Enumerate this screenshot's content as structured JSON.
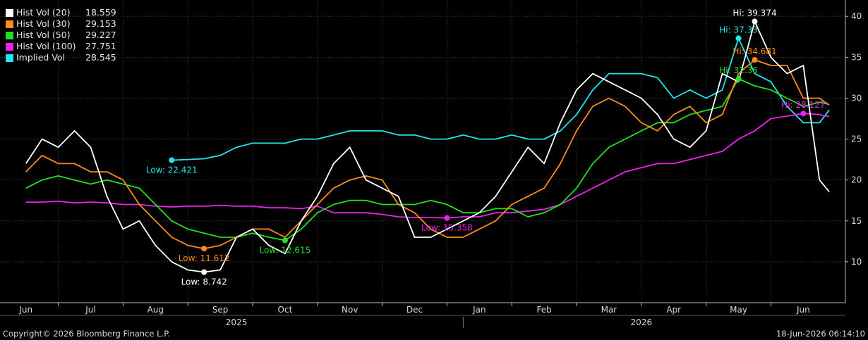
{
  "chart_data": {
    "type": "line",
    "ylim": [
      5,
      42
    ],
    "yticks": [
      10,
      15,
      20,
      25,
      30,
      35,
      40
    ],
    "months": [
      {
        "label": "Jun",
        "x": 0
      },
      {
        "label": "Jul",
        "x": 4
      },
      {
        "label": "Aug",
        "x": 8
      },
      {
        "label": "Sep",
        "x": 12
      },
      {
        "label": "Oct",
        "x": 16
      },
      {
        "label": "Nov",
        "x": 20
      },
      {
        "label": "Dec",
        "x": 24
      },
      {
        "label": "Jan",
        "x": 28
      },
      {
        "label": "Feb",
        "x": 32
      },
      {
        "label": "Mar",
        "x": 36
      },
      {
        "label": "Apr",
        "x": 40
      },
      {
        "label": "May",
        "x": 44
      },
      {
        "label": "Jun",
        "x": 48
      }
    ],
    "years": [
      {
        "label": "2025",
        "x": 13
      },
      {
        "label": "2026",
        "x": 38
      }
    ],
    "series": [
      {
        "name": "Hist Vol (20)",
        "last": "18.559",
        "color": "#ffffff",
        "x": [
          0,
          1,
          2,
          3,
          4,
          5,
          6,
          7,
          8,
          9,
          10,
          11,
          12,
          13,
          14,
          15,
          16,
          17,
          18,
          19,
          20,
          21,
          22,
          23,
          24,
          25,
          26,
          27,
          28,
          29,
          30,
          31,
          32,
          33,
          34,
          35,
          36,
          37,
          38,
          39,
          40,
          41,
          42,
          43,
          44,
          45,
          46,
          47,
          48,
          49,
          49.6
        ],
        "y": [
          22,
          25,
          24,
          26,
          24,
          18,
          14,
          15,
          12,
          10,
          9,
          8.742,
          9,
          13,
          14,
          12,
          11,
          15,
          18,
          22,
          24,
          20,
          19,
          18,
          13,
          13,
          14,
          15,
          16,
          18,
          21,
          24,
          22,
          27,
          31,
          33,
          32,
          31,
          30,
          28,
          25,
          24,
          26,
          33,
          32,
          39.374,
          35,
          33,
          34,
          20,
          18.559
        ]
      },
      {
        "name": "Hist Vol (30)",
        "last": "29.153",
        "color": "#ff8c1a",
        "x": [
          0,
          1,
          2,
          3,
          4,
          5,
          6,
          7,
          8,
          9,
          10,
          11,
          12,
          13,
          14,
          15,
          16,
          17,
          18,
          19,
          20,
          21,
          22,
          23,
          24,
          25,
          26,
          27,
          28,
          29,
          30,
          31,
          32,
          33,
          34,
          35,
          36,
          37,
          38,
          39,
          40,
          41,
          42,
          43,
          44,
          45,
          46,
          47,
          48,
          49,
          49.6
        ],
        "y": [
          21,
          23,
          22,
          22,
          21,
          21,
          20,
          17,
          15,
          13,
          12,
          11.612,
          12,
          13,
          14,
          14,
          13,
          15,
          17,
          19,
          20,
          20.5,
          20,
          17,
          16,
          14,
          13,
          13,
          14,
          15,
          17,
          18,
          19,
          22,
          26,
          29,
          30,
          29,
          27,
          26,
          28,
          29,
          27,
          28,
          33,
          34.681,
          34,
          34,
          30,
          30,
          29.153
        ]
      },
      {
        "name": "Hist Vol (50)",
        "last": "29.227",
        "color": "#22e022",
        "x": [
          0,
          1,
          2,
          3,
          4,
          5,
          6,
          7,
          8,
          9,
          10,
          11,
          12,
          13,
          14,
          15,
          16,
          17,
          18,
          19,
          20,
          21,
          22,
          23,
          24,
          25,
          26,
          27,
          28,
          29,
          30,
          31,
          32,
          33,
          34,
          35,
          36,
          37,
          38,
          39,
          40,
          41,
          42,
          43,
          44,
          45,
          46,
          47,
          48,
          49,
          49.6
        ],
        "y": [
          19,
          20,
          20.5,
          20,
          19.5,
          20,
          19.5,
          19,
          17,
          15,
          14,
          13.5,
          13,
          13,
          13.5,
          13,
          12.615,
          14,
          16,
          17,
          17.5,
          17.5,
          17,
          17,
          17,
          17.5,
          17,
          16,
          16,
          16.5,
          16.5,
          15.5,
          16,
          17,
          19,
          22,
          24,
          25,
          26,
          27,
          27,
          28,
          28.5,
          29,
          32.36,
          31.5,
          31,
          30,
          29,
          29.5,
          29.227
        ]
      },
      {
        "name": "Hist Vol (100)",
        "last": "27.751",
        "color": "#ee22ee",
        "x": [
          0,
          1,
          2,
          3,
          4,
          5,
          6,
          7,
          8,
          9,
          10,
          11,
          12,
          13,
          14,
          15,
          16,
          17,
          18,
          19,
          20,
          21,
          22,
          23,
          24,
          25,
          26,
          27,
          28,
          29,
          30,
          31,
          32,
          33,
          34,
          35,
          36,
          37,
          38,
          39,
          40,
          41,
          42,
          43,
          44,
          45,
          46,
          47,
          48,
          49,
          49.6
        ],
        "y": [
          17.3,
          17.3,
          17.4,
          17.2,
          17.3,
          17.2,
          17,
          17,
          16.8,
          16.7,
          16.8,
          16.8,
          16.9,
          16.8,
          16.8,
          16.6,
          16.6,
          16.5,
          16.8,
          16,
          16,
          16,
          15.8,
          15.5,
          15.4,
          15.4,
          15.35,
          15.5,
          15.5,
          16,
          16,
          16.2,
          16.4,
          17,
          18,
          19,
          20,
          21,
          21.5,
          22,
          22,
          22.5,
          23,
          23.5,
          25,
          26,
          27.5,
          27.8,
          28.127,
          28,
          27.751
        ]
      },
      {
        "name": "Implied Vol",
        "last": "28.545",
        "color": "#22e6ee",
        "x": [
          9,
          10,
          11,
          12,
          13,
          14,
          15,
          16,
          17,
          18,
          19,
          20,
          21,
          22,
          23,
          24,
          25,
          26,
          27,
          28,
          29,
          30,
          31,
          32,
          33,
          34,
          35,
          36,
          37,
          38,
          39,
          40,
          41,
          42,
          43,
          44,
          45,
          46,
          47,
          48,
          49,
          49.6
        ],
        "y": [
          22.421,
          22.5,
          22.6,
          23,
          24,
          24.5,
          24.5,
          24.5,
          25,
          25,
          25.5,
          26,
          26,
          26,
          25.5,
          25.5,
          25,
          25,
          25.5,
          25,
          25,
          25.5,
          25,
          25,
          26,
          28,
          31,
          33,
          33,
          33,
          32.5,
          30,
          31,
          30,
          31,
          37.33,
          33,
          32,
          29,
          27,
          27,
          28.545
        ]
      }
    ],
    "annotations": [
      {
        "text": "Low: 8.742",
        "series": 0,
        "x": 11,
        "y": 8.742,
        "pos": "below"
      },
      {
        "text": "Low: 11.612",
        "series": 1,
        "x": 11,
        "y": 11.612,
        "pos": "below"
      },
      {
        "text": "Low: 12.615",
        "series": 2,
        "x": 16,
        "y": 12.615,
        "pos": "below"
      },
      {
        "text": "Low: 15.358",
        "series": 3,
        "x": 26,
        "y": 15.358,
        "pos": "below"
      },
      {
        "text": "Low: 22.421",
        "series": 4,
        "x": 9,
        "y": 22.421,
        "pos": "below"
      },
      {
        "text": "Hi: 39.374",
        "series": 0,
        "x": 45,
        "y": 39.374,
        "pos": "above"
      },
      {
        "text": "Hi: 34.681",
        "series": 1,
        "x": 45,
        "y": 34.681,
        "pos": "above"
      },
      {
        "text": "Hi: 32.36",
        "series": 2,
        "x": 44,
        "y": 32.36,
        "pos": "above"
      },
      {
        "text": "Hi: 28.127",
        "series": 3,
        "x": 48,
        "y": 28.127,
        "pos": "above"
      },
      {
        "text": "Hi: 37.33",
        "series": 4,
        "x": 44,
        "y": 37.33,
        "pos": "above"
      }
    ]
  },
  "footer": {
    "copyright": "Copyright© 2026 Bloomberg Finance L.P.",
    "timestamp": "18-Jun-2026 06:14:10"
  }
}
